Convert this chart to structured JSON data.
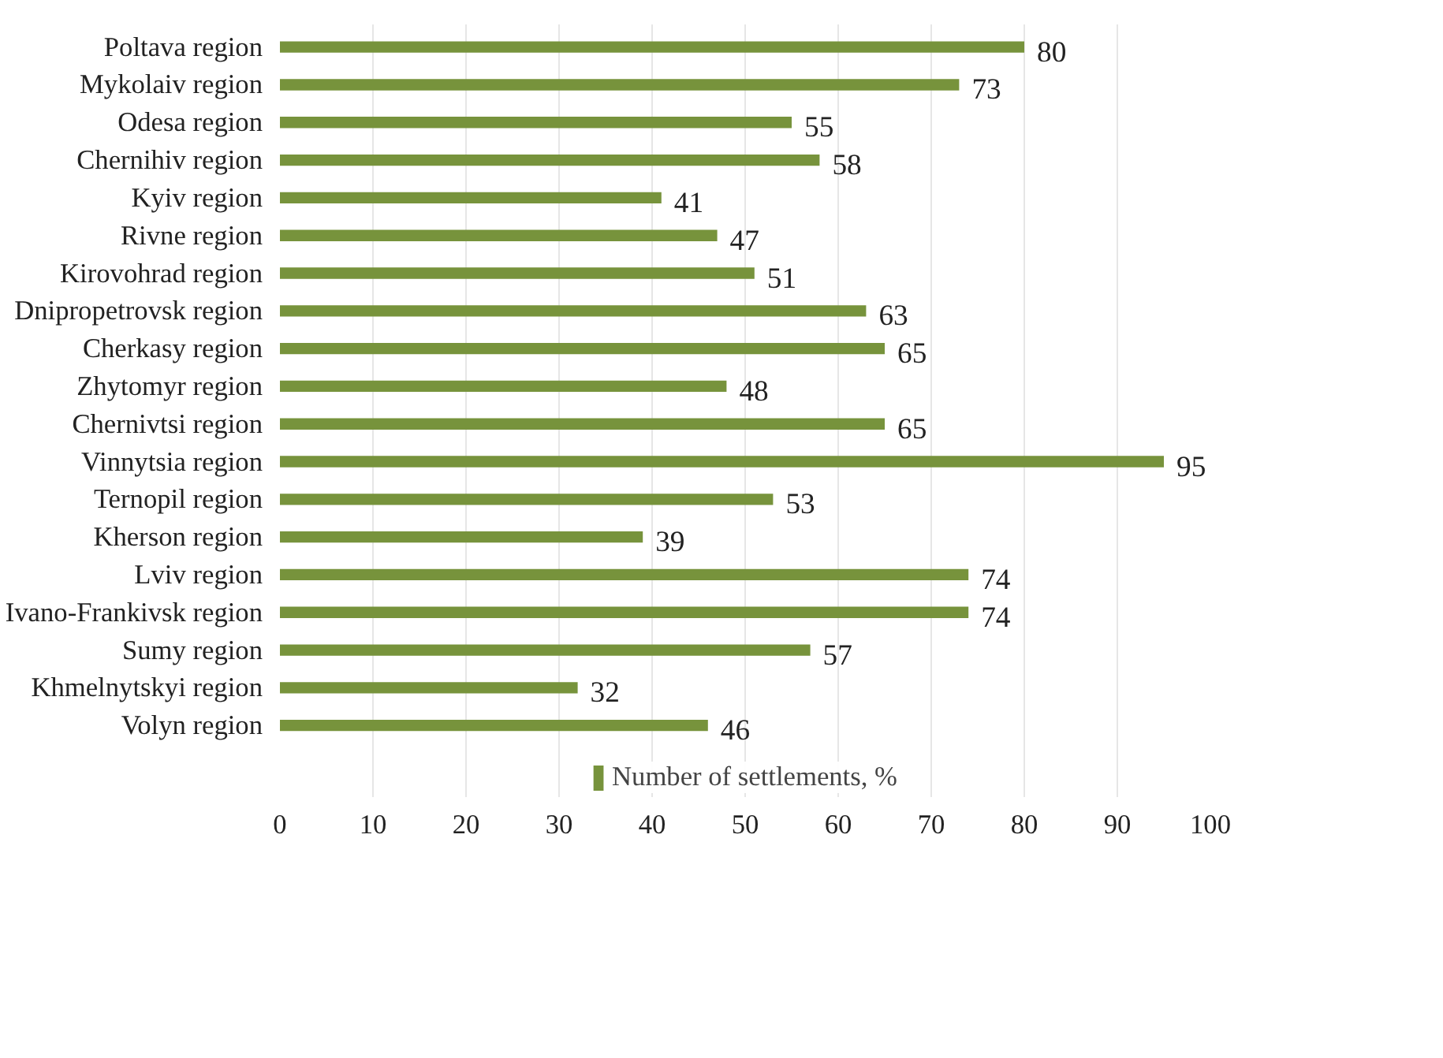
{
  "chart_data": {
    "type": "bar",
    "orientation": "horizontal",
    "categories": [
      "Poltava region",
      "Mykolaiv region",
      "Odesa region",
      "Chernihiv region",
      "Kyiv region",
      "Rivne region",
      "Kirovohrad region",
      "Dnipropetrovsk region",
      "Cherkasy region",
      "Zhytomyr region",
      "Chernivtsi region",
      "Vinnytsia region",
      "Ternopil region",
      "Kherson region",
      "Lviv region",
      "Ivano-Frankivsk region",
      "Sumy region",
      "Khmelnytskyi region",
      "Volyn region"
    ],
    "series": [
      {
        "name": "Number of settlements, %",
        "color": "#77933c",
        "values": [
          80,
          73,
          55,
          58,
          41,
          47,
          51,
          63,
          65,
          48,
          65,
          95,
          53,
          39,
          74,
          74,
          57,
          32,
          46
        ]
      }
    ],
    "xlim": [
      0,
      100
    ],
    "xticks": [
      0,
      10,
      20,
      30,
      40,
      50,
      60,
      70,
      80,
      90,
      100
    ],
    "grid": "x",
    "legend": "bottom",
    "data_labels": true
  }
}
